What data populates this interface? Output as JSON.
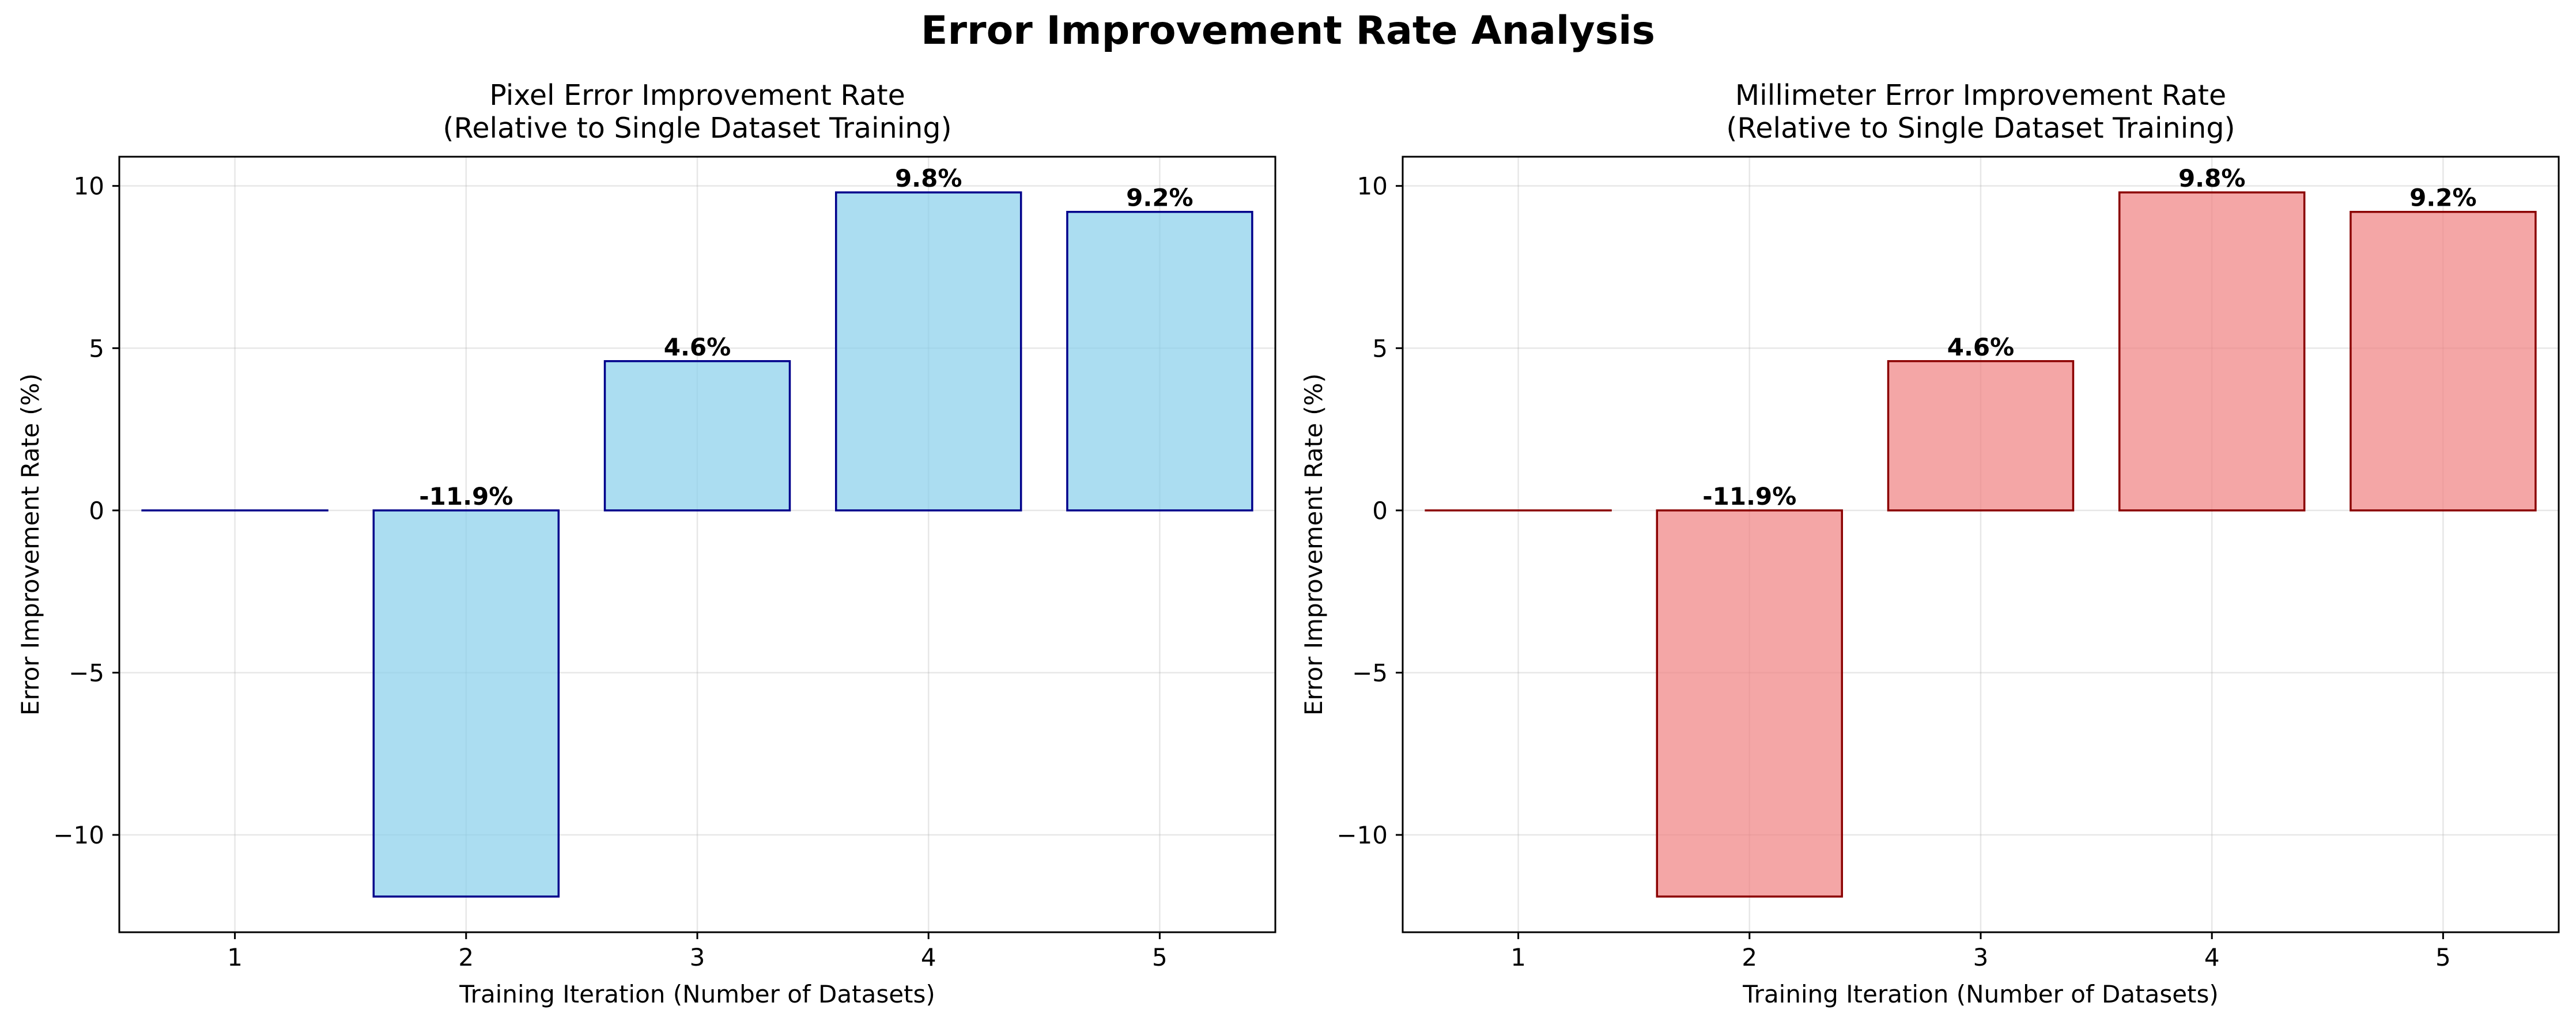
{
  "figure": {
    "title": "Error Improvement Rate Analysis"
  },
  "chart_data": [
    {
      "type": "bar",
      "title_lines": [
        "Pixel Error Improvement Rate",
        "(Relative to Single Dataset Training)"
      ],
      "xlabel": "Training Iteration (Number of Datasets)",
      "ylabel": "Error Improvement Rate (%)",
      "categories": [
        "1",
        "2",
        "3",
        "4",
        "5"
      ],
      "values": [
        0.0,
        -11.9,
        4.6,
        9.8,
        9.2
      ],
      "value_labels": [
        "",
        "-11.9%",
        "4.6%",
        "9.8%",
        "9.2%"
      ],
      "ylim": [
        -13.0,
        10.9
      ],
      "yticks": [
        -10,
        -5,
        0,
        5,
        10
      ],
      "ytick_labels": [
        "−10",
        "−5",
        "0",
        "5",
        "10"
      ],
      "grid": true,
      "bar_fill": "#87ceeb",
      "bar_fill_opacity": 0.7,
      "bar_edge": "#00008b"
    },
    {
      "type": "bar",
      "title_lines": [
        "Millimeter Error Improvement Rate",
        "(Relative to Single Dataset Training)"
      ],
      "xlabel": "Training Iteration (Number of Datasets)",
      "ylabel": "Error Improvement Rate (%)",
      "categories": [
        "1",
        "2",
        "3",
        "4",
        "5"
      ],
      "values": [
        0.0,
        -11.9,
        4.6,
        9.8,
        9.2
      ],
      "value_labels": [
        "",
        "-11.9%",
        "4.6%",
        "9.8%",
        "9.2%"
      ],
      "ylim": [
        -13.0,
        10.9
      ],
      "yticks": [
        -10,
        -5,
        0,
        5,
        10
      ],
      "ytick_labels": [
        "−10",
        "−5",
        "0",
        "5",
        "10"
      ],
      "grid": true,
      "bar_fill": "#f08080",
      "bar_fill_opacity": 0.7,
      "bar_edge": "#8b0000"
    }
  ]
}
